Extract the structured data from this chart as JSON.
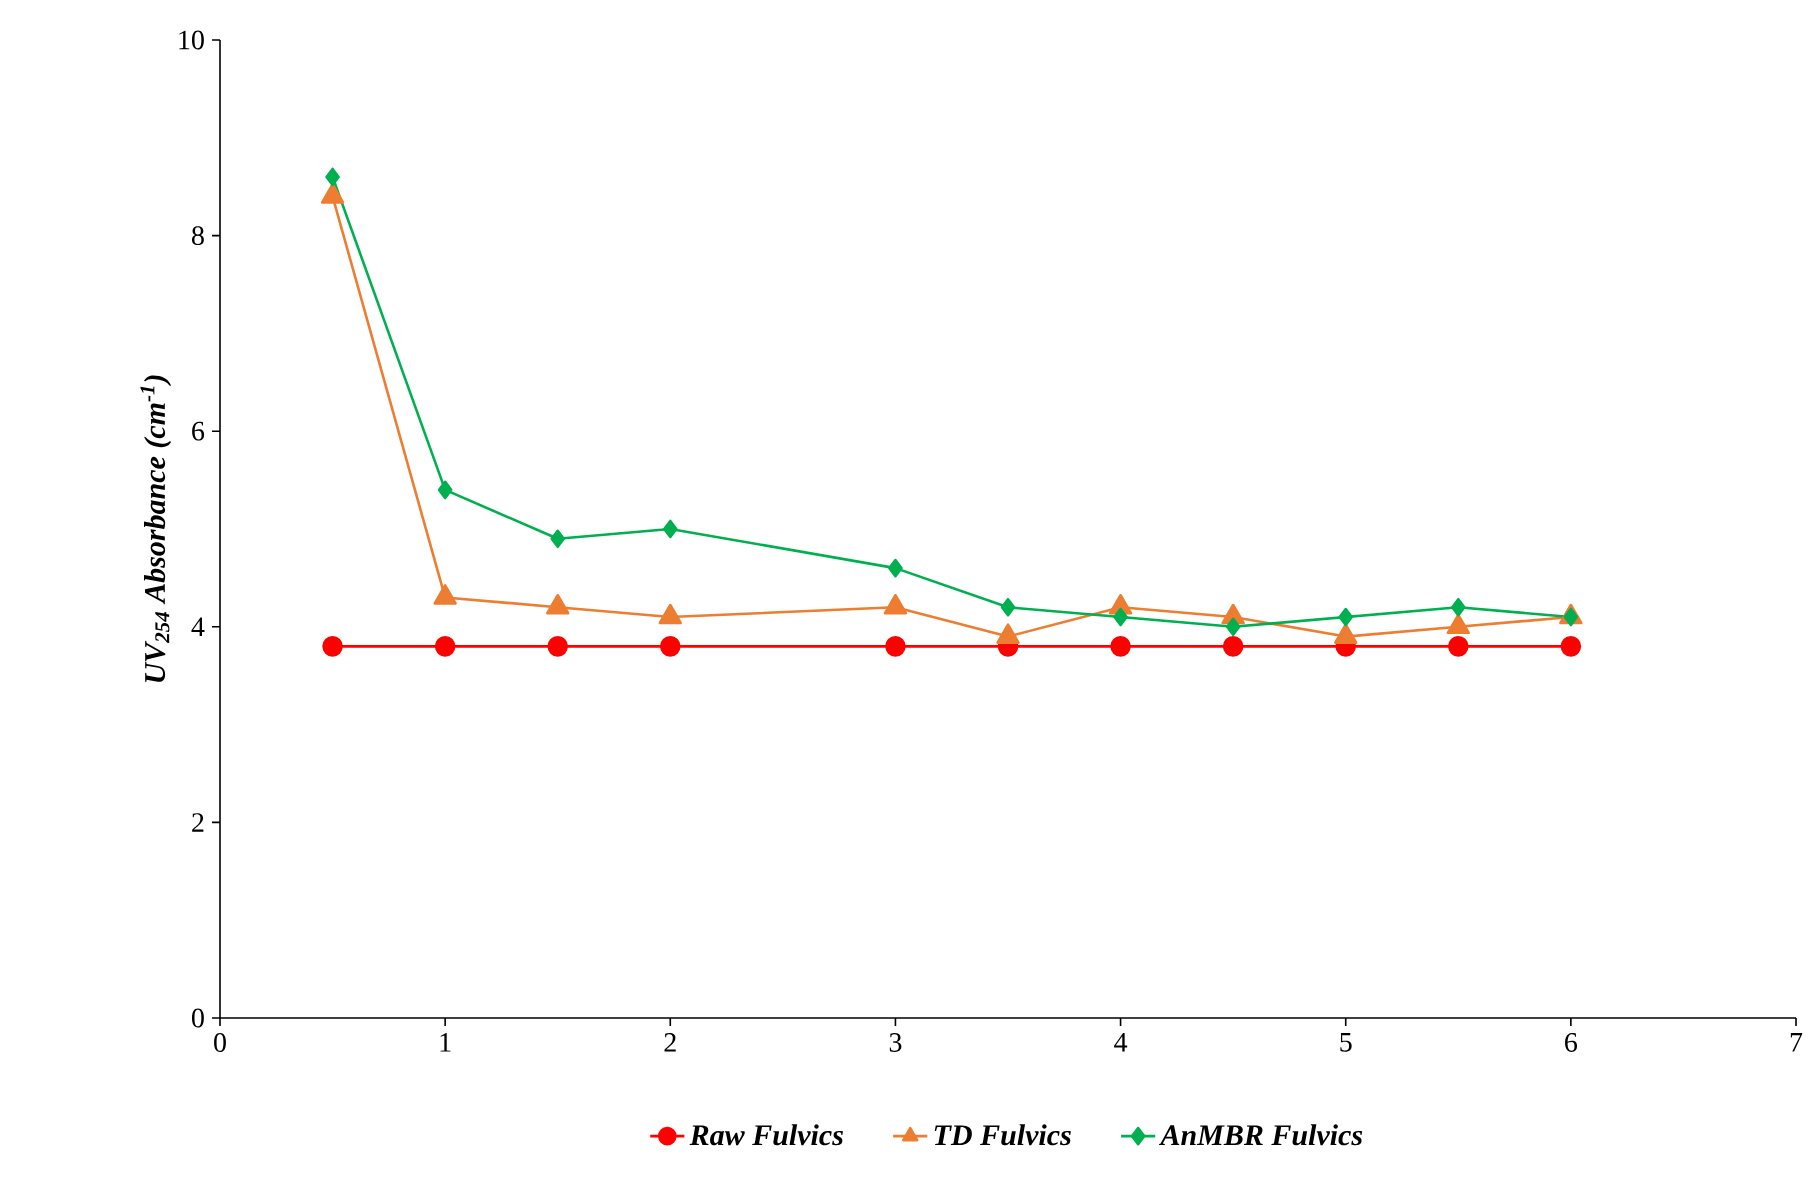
{
  "chart_data": {
    "type": "line",
    "ylabel": "UV$_{254}$ Absorbance (cm$^{-1}$)",
    "xlim": [
      0,
      7
    ],
    "xticks": [
      0,
      1,
      2,
      3,
      4,
      5,
      6,
      7
    ],
    "ylim": [
      0,
      10
    ],
    "yticks": [
      0,
      2,
      4,
      6,
      8,
      10
    ],
    "grid": false,
    "legend": "bottom",
    "series": [
      {
        "name": "Raw Fulvics",
        "color": "#ff0000",
        "marker": "circle",
        "x": [
          0.5,
          1,
          1.5,
          2,
          3,
          3.5,
          4,
          4.5,
          5,
          5.5,
          6
        ],
        "values": [
          3.8,
          3.8,
          3.8,
          3.8,
          3.8,
          3.8,
          3.8,
          3.8,
          3.8,
          3.8,
          3.8
        ]
      },
      {
        "name": "TD Fulvics",
        "color": "#ed7d31",
        "marker": "triangle",
        "x": [
          0.5,
          1,
          1.5,
          2,
          3,
          3.5,
          4,
          4.5,
          5,
          5.5,
          6
        ],
        "values": [
          8.4,
          4.3,
          4.2,
          4.1,
          4.2,
          3.9,
          4.2,
          4.1,
          3.9,
          4.0,
          4.1
        ]
      },
      {
        "name": "AnMBR Fulvics",
        "color": "#00b050",
        "marker": "diamond",
        "x": [
          0.5,
          1,
          1.5,
          2,
          3,
          3.5,
          4,
          4.5,
          5,
          5.5,
          6
        ],
        "values": [
          8.6,
          5.4,
          4.9,
          5.0,
          4.6,
          4.2,
          4.1,
          4.0,
          4.1,
          4.2,
          4.1
        ]
      }
    ]
  }
}
